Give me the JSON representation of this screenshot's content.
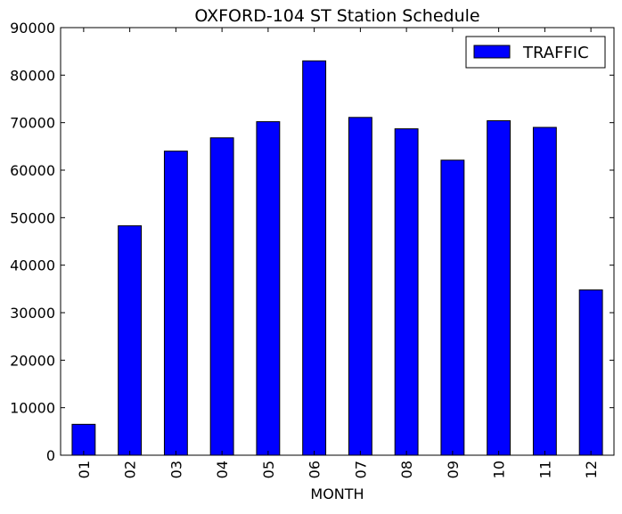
{
  "chart_data": {
    "type": "bar",
    "title": "OXFORD-104 ST Station Schedule",
    "xlabel": "MONTH",
    "ylabel": "",
    "categories": [
      "01",
      "02",
      "03",
      "04",
      "05",
      "06",
      "07",
      "08",
      "09",
      "10",
      "11",
      "12"
    ],
    "series": [
      {
        "name": "TRAFFIC",
        "color": "#0000ff",
        "values": [
          6500,
          48300,
          64000,
          66800,
          70200,
          83000,
          71100,
          68700,
          62100,
          70400,
          69000,
          34800
        ]
      }
    ],
    "ylim": [
      0,
      90000
    ],
    "yticks": [
      "0",
      "10000",
      "20000",
      "30000",
      "40000",
      "50000",
      "60000",
      "70000",
      "80000",
      "90000"
    ],
    "legend_position": "top-right",
    "grid": false
  }
}
